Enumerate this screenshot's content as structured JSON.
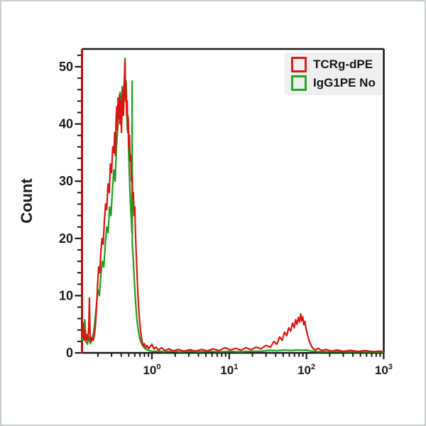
{
  "chart_data": {
    "type": "line",
    "subtype": "flow-cytometry-histogram-overlay",
    "title": "",
    "xlabel": "",
    "ylabel": "Count",
    "x_scale": "log10",
    "x_range": [
      0.124,
      1000
    ],
    "ylim": [
      0,
      53
    ],
    "grid": false,
    "y_ticks": [
      0,
      10,
      20,
      30,
      40,
      50
    ],
    "y_minor_step": 2,
    "y_minor_max": 52,
    "x_ticks": [
      {
        "value": 1,
        "base": "10",
        "exp": "0"
      },
      {
        "value": 10,
        "base": "10",
        "exp": "1"
      },
      {
        "value": 100,
        "base": "10",
        "exp": "2"
      },
      {
        "value": 1000,
        "base": "10",
        "exp": "3"
      }
    ],
    "legend": {
      "position": "top-right",
      "background": "#efefef",
      "entries": [
        {
          "label": "TCRg-dPE",
          "color": "#d42020"
        },
        {
          "label": "IgG1PE No",
          "color": "#28a428"
        }
      ]
    },
    "style": {
      "red_trace": "#dc1512",
      "green_trace": "#1f9e1f",
      "y_axis_color": "#c01010",
      "frame_color": "#1a1a1a",
      "tick_color": "#1a1a1a",
      "text_color": "#1b1b1b",
      "page_border": "#c9cdcd",
      "background": "#ffffff"
    },
    "series": [
      {
        "name": "IgG1PE No",
        "color": "#1f9e1f",
        "points": [
          [
            0.125,
            2.2
          ],
          [
            0.13,
            4.0
          ],
          [
            0.135,
            5.8
          ],
          [
            0.14,
            2.0
          ],
          [
            0.146,
            1.5
          ],
          [
            0.153,
            2.8
          ],
          [
            0.16,
            1.6
          ],
          [
            0.168,
            2.4
          ],
          [
            0.176,
            3.5
          ],
          [
            0.184,
            6.0
          ],
          [
            0.192,
            8.5
          ],
          [
            0.2,
            11.0
          ],
          [
            0.209,
            10.0
          ],
          [
            0.218,
            13.5
          ],
          [
            0.228,
            16.0
          ],
          [
            0.238,
            15.0
          ],
          [
            0.249,
            19.0
          ],
          [
            0.26,
            22.0
          ],
          [
            0.271,
            21.0
          ],
          [
            0.283,
            25.5
          ],
          [
            0.295,
            24.0
          ],
          [
            0.308,
            28.5
          ],
          [
            0.321,
            32.0
          ],
          [
            0.334,
            30.0
          ],
          [
            0.347,
            36.0
          ],
          [
            0.36,
            39.0
          ],
          [
            0.373,
            42.5
          ],
          [
            0.386,
            45.5
          ],
          [
            0.395,
            42.0
          ],
          [
            0.404,
            44.5
          ],
          [
            0.413,
            46.5
          ],
          [
            0.422,
            43.5
          ],
          [
            0.431,
            46.0
          ],
          [
            0.44,
            48.0
          ],
          [
            0.448,
            51.5
          ],
          [
            0.456,
            44.0
          ],
          [
            0.464,
            47.5
          ],
          [
            0.472,
            42.0
          ],
          [
            0.48,
            39.0
          ],
          [
            0.49,
            41.5
          ],
          [
            0.5,
            35.0
          ],
          [
            0.51,
            31.0
          ],
          [
            0.52,
            28.0
          ],
          [
            0.531,
            25.0
          ],
          [
            0.542,
            23.0
          ],
          [
            0.55,
            21.0
          ],
          [
            0.554,
            47.5
          ],
          [
            0.558,
            19.0
          ],
          [
            0.57,
            17.0
          ],
          [
            0.585,
            14.0
          ],
          [
            0.6,
            11.0
          ],
          [
            0.617,
            8.5
          ],
          [
            0.636,
            6.2
          ],
          [
            0.658,
            4.4
          ],
          [
            0.684,
            3.0
          ],
          [
            0.715,
            2.0
          ],
          [
            0.755,
            1.3
          ],
          [
            0.805,
            0.8
          ],
          [
            0.87,
            0.5
          ],
          [
            0.95,
            0.35
          ],
          [
            1.05,
            0.25
          ],
          [
            1.2,
            0.3
          ],
          [
            1.45,
            0.2
          ],
          [
            1.8,
            0.28
          ],
          [
            2.3,
            0.18
          ],
          [
            3.0,
            0.26
          ],
          [
            4.0,
            0.18
          ],
          [
            5.5,
            0.26
          ],
          [
            7.5,
            0.18
          ],
          [
            10.0,
            0.25
          ],
          [
            14.0,
            0.18
          ],
          [
            19.0,
            0.26
          ],
          [
            26.0,
            0.3
          ],
          [
            33.0,
            0.45
          ],
          [
            42.0,
            0.4
          ],
          [
            52.0,
            0.5
          ],
          [
            63.0,
            0.42
          ],
          [
            75.0,
            0.5
          ],
          [
            88.0,
            0.45
          ],
          [
            100.0,
            0.5
          ],
          [
            112.0,
            0.35
          ],
          [
            130.0,
            0.25
          ],
          [
            160.0,
            0.2
          ],
          [
            220.0,
            0.22
          ],
          [
            320.0,
            0.18
          ],
          [
            480.0,
            0.2
          ],
          [
            700.0,
            0.15
          ],
          [
            1000.0,
            0.12
          ]
        ]
      },
      {
        "name": "TCRg-dPE",
        "color": "#dc1512",
        "points": [
          [
            0.125,
            2.8
          ],
          [
            0.129,
            5.2
          ],
          [
            0.132,
            2.2
          ],
          [
            0.136,
            4.0
          ],
          [
            0.139,
            2.0
          ],
          [
            0.143,
            3.2
          ],
          [
            0.148,
            2.2
          ],
          [
            0.152,
            4.5
          ],
          [
            0.155,
            9.6
          ],
          [
            0.158,
            3.4
          ],
          [
            0.163,
            2.0
          ],
          [
            0.168,
            2.6
          ],
          [
            0.174,
            2.2
          ],
          [
            0.18,
            3.2
          ],
          [
            0.186,
            5.0
          ],
          [
            0.192,
            8.0
          ],
          [
            0.198,
            12.0
          ],
          [
            0.204,
            15.0
          ],
          [
            0.211,
            14.0
          ],
          [
            0.218,
            17.5
          ],
          [
            0.226,
            20.0
          ],
          [
            0.234,
            19.0
          ],
          [
            0.242,
            23.0
          ],
          [
            0.251,
            26.0
          ],
          [
            0.26,
            25.0
          ],
          [
            0.27,
            29.5
          ],
          [
            0.28,
            28.0
          ],
          [
            0.29,
            33.0
          ],
          [
            0.3,
            31.5
          ],
          [
            0.311,
            36.0
          ],
          [
            0.322,
            35.0
          ],
          [
            0.329,
            38.5
          ],
          [
            0.336,
            34.5
          ],
          [
            0.343,
            40.5
          ],
          [
            0.35,
            43.0
          ],
          [
            0.357,
            39.0
          ],
          [
            0.364,
            44.5
          ],
          [
            0.371,
            41.0
          ],
          [
            0.379,
            45.0
          ],
          [
            0.387,
            40.0
          ],
          [
            0.395,
            44.0
          ],
          [
            0.403,
            38.5
          ],
          [
            0.411,
            43.5
          ],
          [
            0.419,
            46.0
          ],
          [
            0.427,
            41.5
          ],
          [
            0.435,
            44.5
          ],
          [
            0.441,
            47.5
          ],
          [
            0.448,
            51.0
          ],
          [
            0.455,
            44.5
          ],
          [
            0.462,
            47.0
          ],
          [
            0.47,
            41.5
          ],
          [
            0.478,
            44.0
          ],
          [
            0.486,
            38.5
          ],
          [
            0.494,
            41.0
          ],
          [
            0.502,
            36.0
          ],
          [
            0.512,
            38.0
          ],
          [
            0.522,
            33.5
          ],
          [
            0.532,
            34.5
          ],
          [
            0.542,
            30.0
          ],
          [
            0.553,
            31.0
          ],
          [
            0.564,
            27.0
          ],
          [
            0.576,
            28.0
          ],
          [
            0.588,
            24.0
          ],
          [
            0.6,
            25.5
          ],
          [
            0.612,
            21.0
          ],
          [
            0.625,
            17.5
          ],
          [
            0.638,
            14.5
          ],
          [
            0.652,
            11.5
          ],
          [
            0.666,
            9.0
          ],
          [
            0.681,
            7.0
          ],
          [
            0.697,
            5.2
          ],
          [
            0.714,
            3.8
          ],
          [
            0.732,
            2.6
          ],
          [
            0.752,
            1.8
          ],
          [
            0.775,
            1.2
          ],
          [
            0.8,
            1.6
          ],
          [
            0.83,
            0.9
          ],
          [
            0.865,
            1.3
          ],
          [
            0.905,
            0.7
          ],
          [
            0.95,
            1.1
          ],
          [
            1.0,
            1.5
          ],
          [
            1.06,
            0.7
          ],
          [
            1.13,
            1.0
          ],
          [
            1.22,
            0.5
          ],
          [
            1.33,
            0.9
          ],
          [
            1.47,
            0.4
          ],
          [
            1.65,
            0.7
          ],
          [
            1.9,
            0.35
          ],
          [
            2.2,
            0.6
          ],
          [
            2.6,
            0.3
          ],
          [
            3.1,
            0.55
          ],
          [
            3.7,
            0.3
          ],
          [
            4.4,
            0.6
          ],
          [
            5.2,
            0.35
          ],
          [
            6.2,
            0.7
          ],
          [
            7.4,
            0.4
          ],
          [
            8.8,
            0.9
          ],
          [
            10.4,
            0.5
          ],
          [
            12.2,
            0.8
          ],
          [
            14.2,
            0.45
          ],
          [
            16.5,
            0.9
          ],
          [
            19.2,
            0.55
          ],
          [
            22.3,
            1.0
          ],
          [
            25.8,
            0.7
          ],
          [
            29.8,
            1.3
          ],
          [
            34.2,
            1.0
          ],
          [
            38.0,
            2.0
          ],
          [
            41.5,
            1.5
          ],
          [
            45.0,
            2.8
          ],
          [
            48.5,
            2.2
          ],
          [
            52.0,
            3.6
          ],
          [
            55.5,
            3.0
          ],
          [
            59.0,
            4.4
          ],
          [
            62.5,
            3.8
          ],
          [
            66.0,
            5.2
          ],
          [
            69.5,
            4.4
          ],
          [
            72.5,
            5.8
          ],
          [
            75.5,
            5.0
          ],
          [
            78.5,
            6.2
          ],
          [
            81.5,
            5.4
          ],
          [
            84.5,
            6.8
          ],
          [
            87.0,
            5.6
          ],
          [
            89.5,
            6.3
          ],
          [
            92.5,
            4.9
          ],
          [
            95.5,
            5.5
          ],
          [
            99.0,
            4.2
          ],
          [
            103.0,
            3.2
          ],
          [
            108.0,
            2.2
          ],
          [
            114.0,
            1.4
          ],
          [
            121.0,
            0.8
          ],
          [
            130.0,
            0.5
          ],
          [
            142.0,
            0.8
          ],
          [
            158.0,
            0.4
          ],
          [
            180.0,
            0.6
          ],
          [
            210.0,
            0.3
          ],
          [
            250.0,
            0.5
          ],
          [
            300.0,
            0.25
          ],
          [
            370.0,
            0.45
          ],
          [
            460.0,
            0.25
          ],
          [
            580.0,
            0.4
          ],
          [
            730.0,
            0.2
          ],
          [
            900.0,
            0.3
          ],
          [
            1000.0,
            0.2
          ]
        ]
      }
    ]
  }
}
